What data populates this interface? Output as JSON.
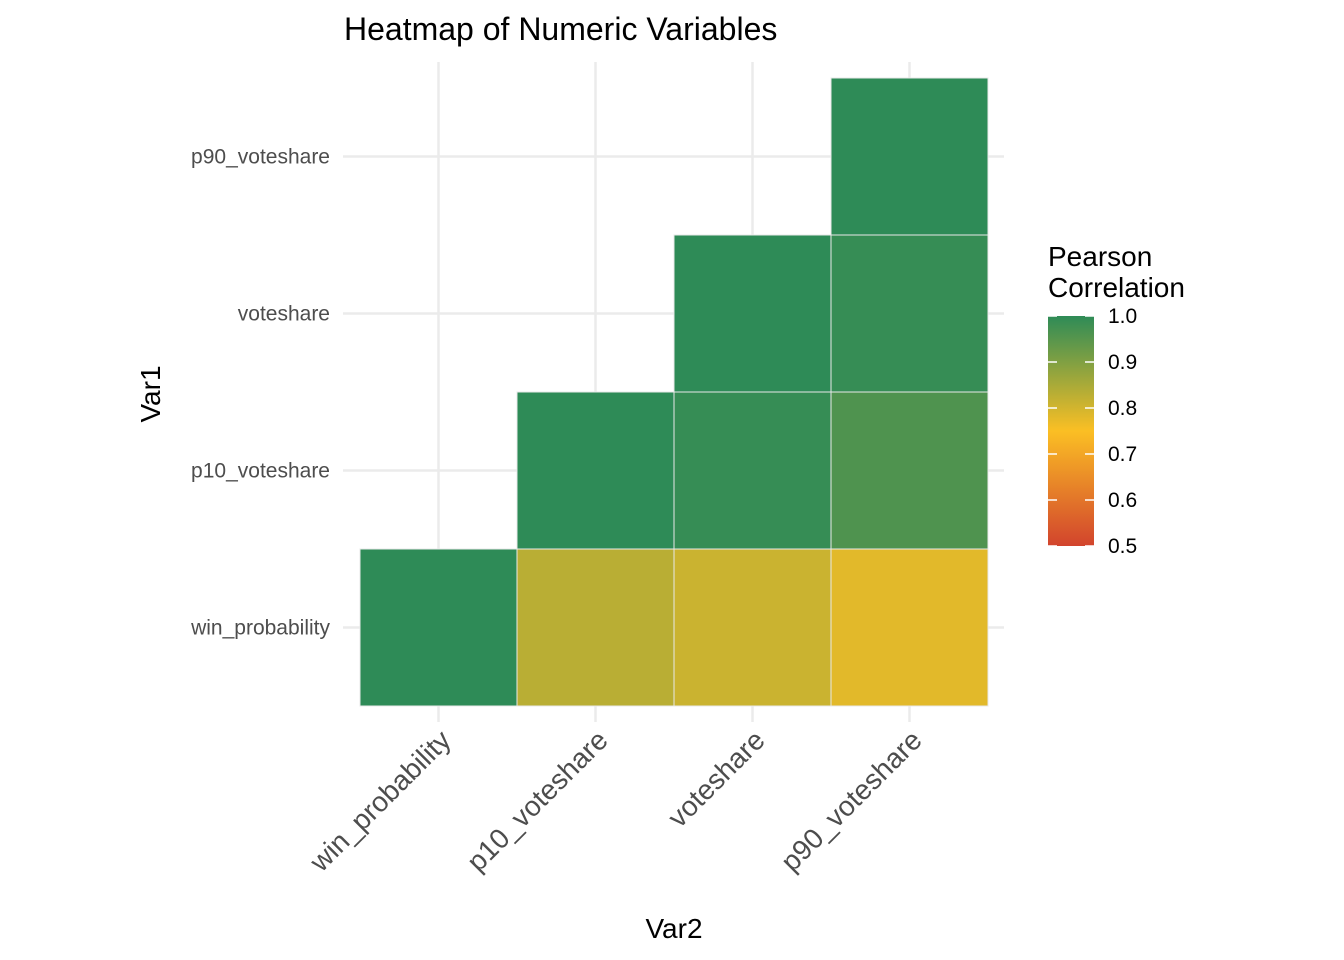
{
  "chart_data": {
    "type": "heatmap",
    "title": "Heatmap of Numeric Variables",
    "xlabel": "Var2",
    "ylabel": "Var1",
    "x_categories": [
      "win_probability",
      "p10_voteshare",
      "voteshare",
      "p90_voteshare"
    ],
    "y_categories": [
      "win_probability",
      "p10_voteshare",
      "voteshare",
      "p90_voteshare"
    ],
    "cells": [
      {
        "x": "win_probability",
        "y": "win_probability",
        "value": 1.0
      },
      {
        "x": "p10_voteshare",
        "y": "win_probability",
        "value": 0.83
      },
      {
        "x": "voteshare",
        "y": "win_probability",
        "value": 0.81
      },
      {
        "x": "p90_voteshare",
        "y": "win_probability",
        "value": 0.78
      },
      {
        "x": "p10_voteshare",
        "y": "p10_voteshare",
        "value": 1.0
      },
      {
        "x": "voteshare",
        "y": "p10_voteshare",
        "value": 0.99
      },
      {
        "x": "p90_voteshare",
        "y": "p10_voteshare",
        "value": 0.96
      },
      {
        "x": "voteshare",
        "y": "voteshare",
        "value": 1.0
      },
      {
        "x": "p90_voteshare",
        "y": "voteshare",
        "value": 0.99
      },
      {
        "x": "p90_voteshare",
        "y": "p90_voteshare",
        "value": 1.0
      }
    ],
    "legend": {
      "title_lines": [
        "Pearson",
        "Correlation"
      ],
      "range": [
        0.5,
        1.0
      ],
      "breaks": [
        "1.0",
        "0.9",
        "0.8",
        "0.7",
        "0.6",
        "0.5"
      ],
      "break_values": [
        1.0,
        0.9,
        0.8,
        0.7,
        0.6,
        0.5
      ],
      "placement": "right"
    },
    "colors": {
      "low": "#d2442d",
      "mid": "#fbbf24",
      "high": "#2e8b57",
      "midpoint": 0.75,
      "cell_border": "#e8e8e8"
    },
    "grid": true
  }
}
